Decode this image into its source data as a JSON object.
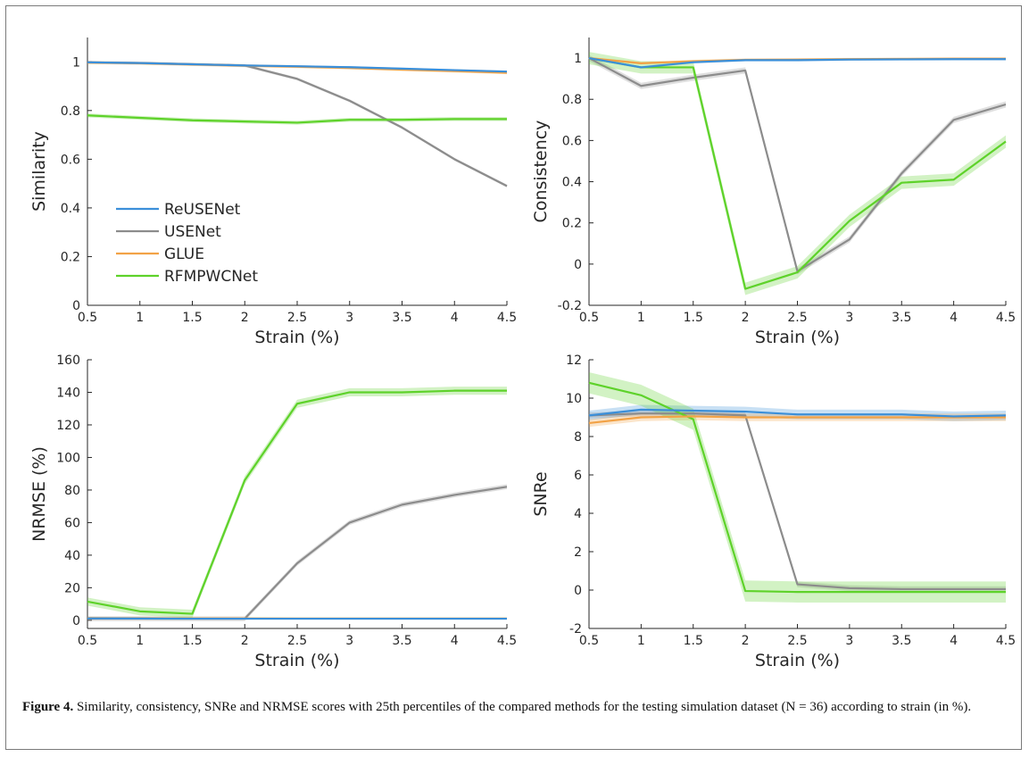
{
  "chart_data": [
    {
      "type": "line",
      "id": "similarity",
      "xlabel": "Strain (%)",
      "ylabel": "Similarity",
      "xlim": [
        0.5,
        4.5
      ],
      "ylim": [
        0,
        1.1
      ],
      "xticks": [
        0.5,
        1,
        1.5,
        2,
        2.5,
        3,
        3.5,
        4,
        4.5
      ],
      "yticks": [
        0,
        0.2,
        0.4,
        0.6,
        0.8,
        1
      ],
      "x": [
        0.5,
        1,
        1.5,
        2,
        2.5,
        3,
        3.5,
        4,
        4.5
      ],
      "legend": {
        "position": "lower-left",
        "entries": [
          "ReUSENet",
          "USENet",
          "GLUE",
          "RFMPWCNet"
        ]
      },
      "series": [
        {
          "name": "ReUSENet",
          "color": "#3b8fd9",
          "values": [
            0.998,
            0.995,
            0.99,
            0.985,
            0.982,
            0.978,
            0.972,
            0.966,
            0.96
          ]
        },
        {
          "name": "USENet",
          "color": "#8c8c8c",
          "values": [
            0.998,
            0.995,
            0.99,
            0.985,
            0.93,
            0.84,
            0.73,
            0.6,
            0.49
          ]
        },
        {
          "name": "GLUE",
          "color": "#f2a246",
          "values": [
            0.997,
            0.994,
            0.989,
            0.984,
            0.98,
            0.975,
            0.968,
            0.962,
            0.955
          ]
        },
        {
          "name": "RFMPWCNet",
          "color": "#5ed22a",
          "values": [
            0.78,
            0.77,
            0.76,
            0.755,
            0.75,
            0.762,
            0.762,
            0.765,
            0.765
          ]
        }
      ]
    },
    {
      "type": "line",
      "id": "consistency",
      "xlabel": "Strain (%)",
      "ylabel": "Consistency",
      "xlim": [
        0.5,
        4.5
      ],
      "ylim": [
        -0.2,
        1.1
      ],
      "xticks": [
        0.5,
        1,
        1.5,
        2,
        2.5,
        3,
        3.5,
        4,
        4.5
      ],
      "yticks": [
        -0.2,
        0,
        0.2,
        0.4,
        0.6,
        0.8,
        1
      ],
      "x": [
        0.5,
        1,
        1.5,
        2,
        2.5,
        3,
        3.5,
        4,
        4.5
      ],
      "series": [
        {
          "name": "ReUSENet",
          "color": "#3b8fd9",
          "values": [
            1.0,
            0.955,
            0.98,
            0.99,
            0.99,
            0.993,
            0.994,
            0.995,
            0.995
          ]
        },
        {
          "name": "USENet",
          "color": "#8c8c8c",
          "values": [
            1.0,
            0.865,
            0.905,
            0.94,
            -0.035,
            0.12,
            0.44,
            0.7,
            0.775
          ]
        },
        {
          "name": "GLUE",
          "color": "#f2a246",
          "values": [
            1.0,
            0.975,
            0.985,
            0.992,
            0.993,
            0.995,
            0.996,
            0.997,
            0.997
          ]
        },
        {
          "name": "RFMPWCNet",
          "color": "#5ed22a",
          "values": [
            1.0,
            0.955,
            0.955,
            -0.12,
            -0.04,
            0.21,
            0.395,
            0.41,
            0.595
          ]
        }
      ]
    },
    {
      "type": "line",
      "id": "nrmse",
      "xlabel": "Strain (%)",
      "ylabel": "NRMSE (%)",
      "xlim": [
        0.5,
        4.5
      ],
      "ylim": [
        -5,
        160
      ],
      "xticks": [
        0.5,
        1,
        1.5,
        2,
        2.5,
        3,
        3.5,
        4,
        4.5
      ],
      "yticks": [
        0,
        20,
        40,
        60,
        80,
        100,
        120,
        140,
        160
      ],
      "x": [
        0.5,
        1,
        1.5,
        2,
        2.5,
        3,
        3.5,
        4,
        4.5
      ],
      "series": [
        {
          "name": "ReUSENet",
          "color": "#3b8fd9",
          "values": [
            1.2,
            1.1,
            1.0,
            1.0,
            1.0,
            1.0,
            1.0,
            1.0,
            1.0
          ]
        },
        {
          "name": "USENet",
          "color": "#8c8c8c",
          "values": [
            1.0,
            1.0,
            1.0,
            1.0,
            35,
            60,
            71,
            77,
            82
          ]
        },
        {
          "name": "GLUE",
          "color": "#f2a246",
          "values": [
            1.4,
            1.3,
            1.2,
            1.2,
            1.1,
            1.1,
            1.1,
            1.1,
            1.1
          ]
        },
        {
          "name": "RFMPWCNet",
          "color": "#5ed22a",
          "values": [
            11.5,
            5.5,
            4.0,
            86,
            133,
            140,
            140,
            141,
            141
          ]
        }
      ]
    },
    {
      "type": "line",
      "id": "snre",
      "xlabel": "Strain (%)",
      "ylabel": "SNRe",
      "xlim": [
        0.5,
        4.5
      ],
      "ylim": [
        -2,
        12
      ],
      "xticks": [
        0.5,
        1,
        1.5,
        2,
        2.5,
        3,
        3.5,
        4,
        4.5
      ],
      "yticks": [
        -2,
        0,
        2,
        4,
        6,
        8,
        10,
        12
      ],
      "x": [
        0.5,
        1,
        1.5,
        2,
        2.5,
        3,
        3.5,
        4,
        4.5
      ],
      "series": [
        {
          "name": "ReUSENet",
          "color": "#3b8fd9",
          "values": [
            9.1,
            9.4,
            9.35,
            9.3,
            9.15,
            9.15,
            9.15,
            9.05,
            9.1
          ]
        },
        {
          "name": "USENet",
          "color": "#8c8c8c",
          "values": [
            9.1,
            9.2,
            9.2,
            9.1,
            0.3,
            0.1,
            0.05,
            0.05,
            0.05
          ]
        },
        {
          "name": "GLUE",
          "color": "#f2a246",
          "values": [
            8.7,
            9.0,
            9.05,
            9.0,
            9.0,
            9.0,
            9.0,
            9.0,
            9.0
          ]
        },
        {
          "name": "RFMPWCNet",
          "color": "#5ed22a",
          "values": [
            10.8,
            10.15,
            8.9,
            -0.05,
            -0.1,
            -0.1,
            -0.1,
            -0.1,
            -0.1
          ]
        }
      ]
    }
  ],
  "caption": {
    "label": "Figure 4.",
    "text": " Similarity, consistency, SNRe and NRMSE scores with 25th percentiles of the compared methods for the testing simulation dataset (N = 36) according to strain (in %)."
  }
}
